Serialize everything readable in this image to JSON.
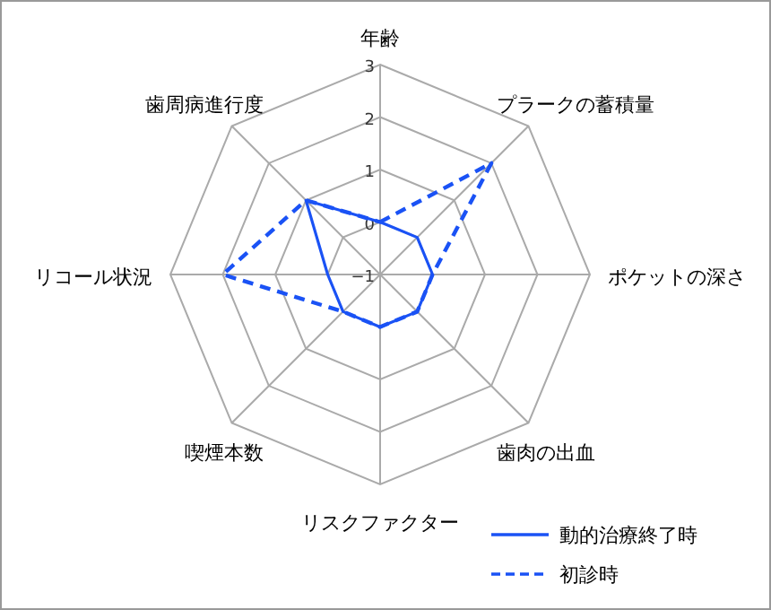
{
  "chart_data": {
    "type": "radar",
    "categories": [
      "年齢",
      "プラークの蓄積量",
      "ポケットの深さ",
      "歯肉の出血",
      "リスクファクター",
      "喫煙本数",
      "リコール状況",
      "歯周病進行度"
    ],
    "ylim": [
      -1,
      3
    ],
    "yticks": [
      -1,
      0,
      1,
      2,
      3
    ],
    "legend": "bottom right",
    "grid": true,
    "series": [
      {
        "name": "動的治療終了時",
        "color": "#1a52f5",
        "line_style": "solid",
        "values": [
          0,
          0,
          0,
          0,
          0,
          0,
          0,
          1
        ]
      },
      {
        "name": "初診時",
        "color": "#1a52f5",
        "line_style": "dashed",
        "values": [
          0,
          2,
          0,
          0,
          0,
          0,
          2,
          1
        ]
      }
    ]
  }
}
